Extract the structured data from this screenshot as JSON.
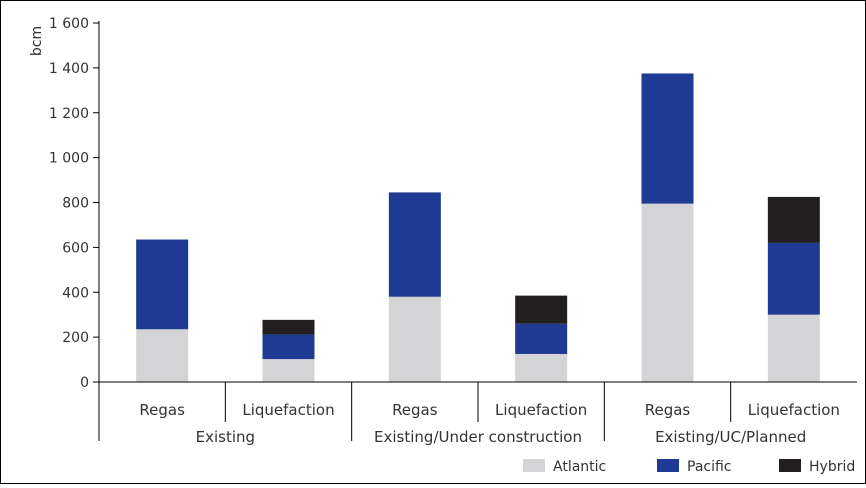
{
  "chart_data": {
    "type": "bar",
    "stacked": true,
    "ylabel": "bcm",
    "ylim": [
      0,
      1600
    ],
    "yticks": [
      0,
      200,
      400,
      600,
      800,
      1000,
      1200,
      1400,
      1600
    ],
    "ytick_labels": [
      "0",
      "200",
      "400",
      "600",
      "800",
      "1 000",
      "1 200",
      "1 400",
      "1 600"
    ],
    "groups": [
      "Existing",
      "Existing/Under construction",
      "Existing/UC/Planned"
    ],
    "categories": [
      "Regas",
      "Liquefaction",
      "Regas",
      "Liquefaction",
      "Regas",
      "Liquefaction"
    ],
    "category_group": [
      0,
      0,
      1,
      1,
      2,
      2
    ],
    "series": [
      {
        "name": "Atlantic",
        "color": "#d4d4d6",
        "values": [
          235,
          102,
          380,
          125,
          795,
          300
        ]
      },
      {
        "name": "Pacific",
        "color": "#1f3a93",
        "values": [
          400,
          110,
          465,
          135,
          580,
          320
        ]
      },
      {
        "name": "Hybrid",
        "color": "#231f20",
        "values": [
          0,
          65,
          0,
          125,
          0,
          205
        ]
      }
    ],
    "grid": false,
    "legend_position": "bottom-right"
  }
}
